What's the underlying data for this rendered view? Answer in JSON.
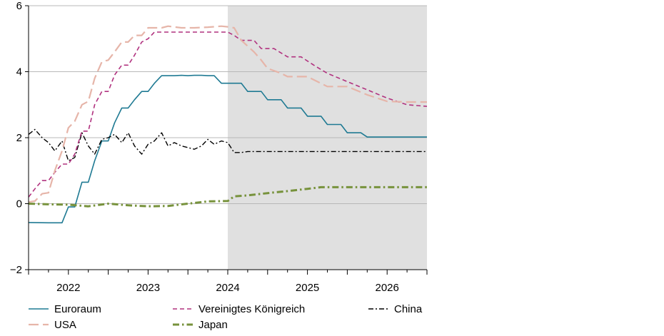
{
  "chart_data": {
    "type": "line",
    "title": "",
    "xlabel": "",
    "ylabel": "",
    "ylim": [
      -2,
      6
    ],
    "xlim": [
      2021.5,
      2026.5
    ],
    "y_ticks": [
      -2,
      0,
      2,
      4,
      6
    ],
    "y_tick_labels": [
      "−2",
      "0",
      "2",
      "4",
      "6"
    ],
    "x_tick_labels": [
      "2022",
      "2023",
      "2024",
      "2025",
      "2026"
    ],
    "x_tick_positions": [
      2022,
      2023,
      2024,
      2025,
      2026
    ],
    "grid": "horizontal",
    "shaded_region": {
      "from": 2024.0,
      "to": 2026.5,
      "color": "#e0e0e0"
    },
    "legend_position": "bottom",
    "series": [
      {
        "name": "Euroraum",
        "color": "#1f7a93",
        "style": "solid",
        "x": [
          2021.5,
          2021.75,
          2021.92,
          2022.0,
          2022.08,
          2022.17,
          2022.25,
          2022.33,
          2022.42,
          2022.5,
          2022.58,
          2022.67,
          2022.75,
          2022.83,
          2022.92,
          2023.0,
          2023.08,
          2023.17,
          2023.25,
          2023.33,
          2023.42,
          2023.5,
          2023.58,
          2023.67,
          2023.75,
          2023.83,
          2023.92,
          2024.0,
          2024.17,
          2024.25,
          2024.42,
          2024.5,
          2024.67,
          2024.75,
          2024.92,
          2025.0,
          2025.17,
          2025.25,
          2025.42,
          2025.5,
          2025.67,
          2025.75,
          2025.92,
          2026.0,
          2026.25,
          2026.5
        ],
        "y": [
          -0.57,
          -0.58,
          -0.58,
          -0.1,
          -0.1,
          0.65,
          0.65,
          1.3,
          1.9,
          1.9,
          2.45,
          2.9,
          2.9,
          3.15,
          3.4,
          3.4,
          3.65,
          3.88,
          3.88,
          3.88,
          3.89,
          3.88,
          3.89,
          3.89,
          3.88,
          3.88,
          3.65,
          3.65,
          3.65,
          3.4,
          3.4,
          3.15,
          3.15,
          2.9,
          2.9,
          2.65,
          2.65,
          2.4,
          2.4,
          2.15,
          2.15,
          2.02,
          2.02,
          2.02,
          2.02,
          2.02
        ]
      },
      {
        "name": "USA",
        "color": "#e6b5a9",
        "style": "longdash",
        "x": [
          2021.5,
          2021.58,
          2021.67,
          2021.75,
          2021.83,
          2021.92,
          2022.0,
          2022.08,
          2022.17,
          2022.25,
          2022.33,
          2022.42,
          2022.5,
          2022.58,
          2022.67,
          2022.75,
          2022.83,
          2022.92,
          2023.0,
          2023.08,
          2023.17,
          2023.25,
          2023.42,
          2023.58,
          2023.75,
          2023.92,
          2024.0,
          2024.08,
          2024.17,
          2024.33,
          2024.42,
          2024.5,
          2024.67,
          2024.75,
          2025.0,
          2025.25,
          2025.5,
          2025.75,
          2026.0,
          2026.25,
          2026.5
        ],
        "y": [
          0.05,
          0.08,
          0.3,
          0.33,
          1.0,
          1.6,
          2.3,
          2.5,
          3.0,
          3.1,
          3.8,
          4.3,
          4.35,
          4.6,
          4.9,
          4.9,
          5.1,
          5.1,
          5.33,
          5.33,
          5.33,
          5.38,
          5.33,
          5.33,
          5.35,
          5.38,
          5.36,
          5.33,
          4.95,
          4.6,
          4.35,
          4.1,
          3.95,
          3.85,
          3.85,
          3.55,
          3.55,
          3.3,
          3.1,
          3.08,
          3.08
        ]
      },
      {
        "name": "Vereinigtes Königreich",
        "color": "#b1327f",
        "style": "dash",
        "x": [
          2021.5,
          2021.58,
          2021.67,
          2021.75,
          2021.83,
          2021.92,
          2022.0,
          2022.08,
          2022.17,
          2022.25,
          2022.33,
          2022.42,
          2022.5,
          2022.58,
          2022.67,
          2022.75,
          2022.83,
          2022.92,
          2023.0,
          2023.08,
          2023.17,
          2023.25,
          2023.42,
          2023.58,
          2023.75,
          2023.92,
          2024.0,
          2024.08,
          2024.17,
          2024.33,
          2024.42,
          2024.58,
          2024.75,
          2024.92,
          2025.08,
          2025.25,
          2025.5,
          2025.75,
          2026.0,
          2026.25,
          2026.5
        ],
        "y": [
          0.2,
          0.45,
          0.7,
          0.7,
          0.95,
          1.2,
          1.2,
          1.5,
          2.2,
          2.2,
          3.0,
          3.4,
          3.4,
          3.9,
          4.2,
          4.2,
          4.5,
          4.9,
          5.0,
          5.2,
          5.2,
          5.2,
          5.2,
          5.2,
          5.2,
          5.2,
          5.2,
          5.1,
          4.95,
          4.95,
          4.7,
          4.7,
          4.45,
          4.45,
          4.2,
          3.95,
          3.7,
          3.45,
          3.2,
          3.0,
          2.95
        ]
      },
      {
        "name": "China",
        "color": "#000000",
        "style": "dashdot",
        "x": [
          2021.5,
          2021.58,
          2021.67,
          2021.75,
          2021.83,
          2021.92,
          2022.0,
          2022.08,
          2022.17,
          2022.25,
          2022.33,
          2022.42,
          2022.5,
          2022.58,
          2022.67,
          2022.75,
          2022.83,
          2022.92,
          2023.0,
          2023.08,
          2023.17,
          2023.25,
          2023.33,
          2023.42,
          2023.5,
          2023.58,
          2023.67,
          2023.75,
          2023.83,
          2023.92,
          2024.0,
          2024.08,
          2024.17,
          2024.25,
          2025.0,
          2025.5,
          2026.0,
          2026.5
        ],
        "y": [
          2.1,
          2.25,
          2.0,
          1.85,
          1.6,
          1.9,
          1.3,
          1.4,
          2.15,
          1.75,
          1.5,
          1.95,
          2.0,
          2.1,
          1.85,
          2.15,
          1.75,
          1.5,
          1.8,
          1.9,
          2.15,
          1.75,
          1.85,
          1.75,
          1.7,
          1.65,
          1.75,
          1.95,
          1.8,
          1.9,
          1.85,
          1.55,
          1.55,
          1.58,
          1.58,
          1.58,
          1.58,
          1.58
        ]
      },
      {
        "name": "Japan",
        "color": "#77923c",
        "style": "dashdot-thick",
        "x": [
          2021.5,
          2021.75,
          2022.0,
          2022.25,
          2022.5,
          2022.75,
          2023.0,
          2023.25,
          2023.5,
          2023.75,
          2024.0,
          2024.08,
          2024.25,
          2024.5,
          2024.75,
          2025.0,
          2025.17,
          2025.5,
          2026.0,
          2026.5
        ],
        "y": [
          0.0,
          -0.02,
          -0.03,
          -0.08,
          0.0,
          -0.05,
          -0.08,
          -0.07,
          0.0,
          0.07,
          0.08,
          0.22,
          0.25,
          0.32,
          0.38,
          0.45,
          0.5,
          0.5,
          0.5,
          0.5
        ]
      }
    ]
  }
}
